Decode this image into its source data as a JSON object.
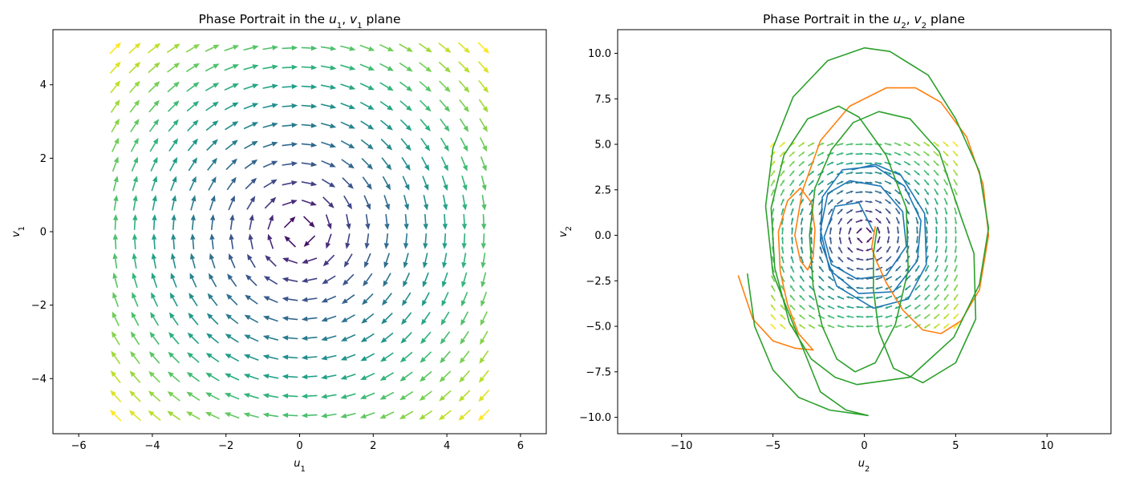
{
  "chart_data": [
    {
      "type": "quiver",
      "title": {
        "prefix": "Phase Portrait in the ",
        "var1": "u",
        "sub1": "1",
        "sep": ", ",
        "var2": "v",
        "sub2": "1",
        "suffix": " plane"
      },
      "xlabel": {
        "var": "u",
        "sub": "1"
      },
      "ylabel": {
        "var": "v",
        "sub": "1"
      },
      "xlim": [
        -6.7,
        6.7
      ],
      "ylim": [
        -5.5,
        5.5
      ],
      "xticks": [
        {
          "v": -6,
          "t": "−6"
        },
        {
          "v": -4,
          "t": "−4"
        },
        {
          "v": -2,
          "t": "−2"
        },
        {
          "v": 0,
          "t": "0"
        },
        {
          "v": 2,
          "t": "2"
        },
        {
          "v": 4,
          "t": "4"
        },
        {
          "v": 6,
          "t": "6"
        }
      ],
      "yticks": [
        {
          "v": -4,
          "t": "−4"
        },
        {
          "v": -2,
          "t": "−2"
        },
        {
          "v": 0,
          "t": "0"
        },
        {
          "v": 2,
          "t": "2"
        },
        {
          "v": 4,
          "t": "4"
        }
      ],
      "grid": false,
      "field": {
        "xrange": [
          -5,
          5
        ],
        "yrange": [
          -5,
          5
        ],
        "n": 20,
        "vector": "du=v, dv=-u",
        "colormap": "viridis"
      }
    },
    {
      "type": "line+quiver",
      "title": {
        "prefix": "Phase Portrait in the ",
        "var1": "u",
        "sub1": "2",
        "sep": ", ",
        "var2": "v",
        "sub2": "2",
        "suffix": " plane"
      },
      "xlabel": {
        "var": "u",
        "sub": "2"
      },
      "ylabel": {
        "var": "v",
        "sub": "2"
      },
      "xlim": [
        -13.5,
        13.5
      ],
      "ylim": [
        -10.9,
        11.3
      ],
      "xticks": [
        {
          "v": -10,
          "t": "−10"
        },
        {
          "v": -5,
          "t": "−5"
        },
        {
          "v": 0,
          "t": "0"
        },
        {
          "v": 5,
          "t": "5"
        },
        {
          "v": 10,
          "t": "10"
        }
      ],
      "yticks": [
        {
          "v": -10,
          "t": "−10.0"
        },
        {
          "v": -7.5,
          "t": "−7.5"
        },
        {
          "v": -5,
          "t": "−5.0"
        },
        {
          "v": -2.5,
          "t": "−2.5"
        },
        {
          "v": 0,
          "t": "0.0"
        },
        {
          "v": 2.5,
          "t": "2.5"
        },
        {
          "v": 5,
          "t": "5.0"
        },
        {
          "v": 7.5,
          "t": "7.5"
        },
        {
          "v": 10,
          "t": "10.0"
        }
      ],
      "grid": false,
      "field": {
        "xrange": [
          -5,
          5
        ],
        "yrange": [
          -5,
          5
        ],
        "n": 20,
        "vector": "du=v, dv=-u",
        "colormap": "viridis"
      },
      "series": [
        {
          "color": "#1f77b4",
          "points": [
            [
              0.5,
              0.2
            ],
            [
              -0.3,
              1.8
            ],
            [
              -1.6,
              1.6
            ],
            [
              -2.2,
              -0.1
            ],
            [
              -1.8,
              -1.6
            ],
            [
              -0.4,
              -2.4
            ],
            [
              1.2,
              -2.2
            ],
            [
              2.3,
              -0.6
            ],
            [
              2.1,
              1.3
            ],
            [
              0.9,
              2.7
            ],
            [
              -0.8,
              3.0
            ],
            [
              -2.0,
              2.3
            ],
            [
              -2.4,
              0.3
            ],
            [
              -1.9,
              -1.9
            ],
            [
              -0.3,
              -3.2
            ],
            [
              1.6,
              -3.1
            ],
            [
              2.9,
              -1.4
            ],
            [
              3.1,
              0.8
            ],
            [
              2.2,
              2.7
            ],
            [
              0.6,
              3.8
            ],
            [
              -1.2,
              3.6
            ],
            [
              -2.3,
              2.1
            ],
            [
              -2.4,
              -0.3
            ],
            [
              -1.5,
              -2.8
            ],
            [
              0.5,
              -4.0
            ],
            [
              2.4,
              -3.5
            ],
            [
              3.4,
              -1.6
            ],
            [
              3.3,
              1.2
            ],
            [
              2.0,
              3.3
            ],
            [
              0.6,
              3.9
            ],
            [
              -0.7,
              3.6
            ]
          ]
        },
        {
          "color": "#ff7f0e",
          "points": [
            [
              0.6,
              0.5
            ],
            [
              0.4,
              -0.7
            ],
            [
              0.7,
              -1.5
            ],
            [
              1.2,
              -2.6
            ],
            [
              2.1,
              -4.1
            ],
            [
              3.2,
              -5.2
            ],
            [
              4.2,
              -5.4
            ],
            [
              5.3,
              -4.7
            ],
            [
              6.3,
              -3.0
            ],
            [
              6.8,
              0.0
            ],
            [
              6.5,
              2.8
            ],
            [
              5.6,
              5.4
            ],
            [
              4.2,
              7.3
            ],
            [
              2.8,
              8.1
            ],
            [
              1.2,
              8.1
            ],
            [
              -0.8,
              7.1
            ],
            [
              -2.4,
              5.2
            ],
            [
              -3.4,
              2.4
            ],
            [
              -3.8,
              0.0
            ],
            [
              -3.5,
              -1.4
            ],
            [
              -3.1,
              -1.9
            ],
            [
              -2.8,
              -1.2
            ],
            [
              -2.7,
              0.3
            ],
            [
              -2.9,
              1.8
            ],
            [
              -3.5,
              2.6
            ],
            [
              -4.2,
              1.9
            ],
            [
              -4.7,
              0.2
            ],
            [
              -4.6,
              -2.0
            ],
            [
              -4.2,
              -3.8
            ],
            [
              -3.6,
              -5.4
            ],
            [
              -2.8,
              -6.3
            ],
            [
              -3.8,
              -6.2
            ],
            [
              -5.0,
              -5.8
            ],
            [
              -6.1,
              -4.6
            ],
            [
              -6.9,
              -2.2
            ]
          ]
        },
        {
          "color": "#2ca02c",
          "points": [
            [
              0.7,
              0.4
            ],
            [
              0.5,
              -1.0
            ],
            [
              0.5,
              -3.0
            ],
            [
              0.8,
              -5.3
            ],
            [
              1.6,
              -7.3
            ],
            [
              3.2,
              -8.1
            ],
            [
              5.0,
              -7.0
            ],
            [
              6.1,
              -4.6
            ],
            [
              6.0,
              -1.0
            ],
            [
              5.3,
              1.0
            ],
            [
              4.1,
              4.6
            ],
            [
              2.5,
              6.4
            ],
            [
              0.8,
              6.8
            ],
            [
              -0.6,
              6.2
            ],
            [
              -1.8,
              4.7
            ],
            [
              -2.7,
              2.6
            ],
            [
              -3.0,
              0.0
            ],
            [
              -2.8,
              -2.8
            ],
            [
              -2.3,
              -5.0
            ],
            [
              -1.5,
              -6.8
            ],
            [
              -0.5,
              -7.5
            ],
            [
              0.6,
              -7.0
            ],
            [
              1.7,
              -4.9
            ],
            [
              2.4,
              -1.9
            ],
            [
              2.3,
              1.5
            ],
            [
              1.2,
              4.4
            ],
            [
              -0.3,
              6.5
            ],
            [
              -1.4,
              7.1
            ],
            [
              -3.1,
              6.4
            ],
            [
              -4.4,
              4.4
            ],
            [
              -5.1,
              1.5
            ],
            [
              -4.9,
              -1.8
            ],
            [
              -4.1,
              -4.8
            ],
            [
              -2.9,
              -6.8
            ],
            [
              -1.6,
              -7.8
            ],
            [
              -0.4,
              -8.2
            ],
            [
              2.5,
              -7.8
            ],
            [
              4.9,
              -5.6
            ],
            [
              6.3,
              -2.7
            ],
            [
              6.8,
              0.4
            ],
            [
              6.3,
              3.5
            ],
            [
              5.0,
              6.4
            ],
            [
              3.5,
              8.8
            ],
            [
              1.4,
              10.1
            ],
            [
              0.0,
              10.3
            ],
            [
              -2.0,
              9.6
            ],
            [
              -3.9,
              7.6
            ],
            [
              -5.0,
              4.8
            ],
            [
              -5.4,
              1.6
            ],
            [
              -5.0,
              -2.1
            ],
            [
              -3.8,
              -5.1
            ],
            [
              -2.4,
              -8.6
            ],
            [
              -1.0,
              -9.6
            ],
            [
              0.2,
              -9.9
            ],
            [
              -1.9,
              -9.6
            ],
            [
              -3.6,
              -8.9
            ],
            [
              -5.0,
              -7.4
            ],
            [
              -6.0,
              -5.0
            ],
            [
              -6.4,
              -2.1
            ]
          ]
        }
      ]
    }
  ]
}
